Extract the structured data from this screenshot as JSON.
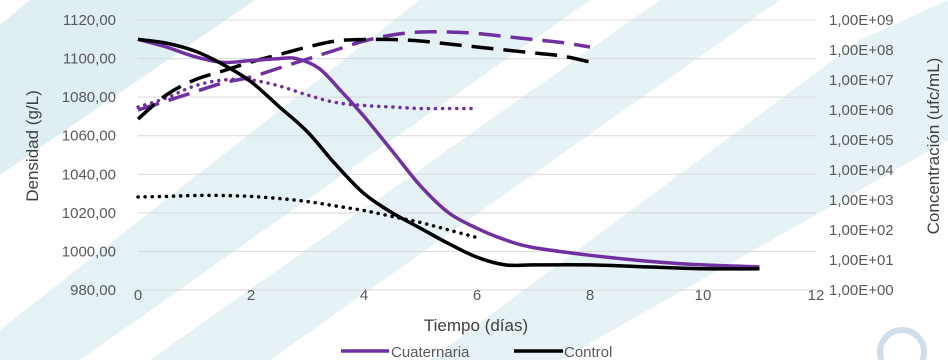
{
  "chart_data": {
    "type": "line",
    "xlabel": "Tiempo (días)",
    "ylabel": "Densidad (g/L)",
    "y2label": "Concentración (ufc/mL)",
    "xlim": [
      0,
      12
    ],
    "ylim": [
      980,
      1120
    ],
    "y2_log_range": [
      0,
      9
    ],
    "x_ticks": [
      "0",
      "2",
      "4",
      "6",
      "8",
      "10",
      "12"
    ],
    "y_ticks": [
      "980,00",
      "1000,00",
      "1020,00",
      "1040,00",
      "1060,00",
      "1080,00",
      "1100,00",
      "1120,00"
    ],
    "y2_ticks": [
      "1,00E+00",
      "1,00E+01",
      "1,00E+02",
      "1,00E+03",
      "1,00E+04",
      "1,00E+05",
      "1,00E+06",
      "1,00E+07",
      "1,00E+08",
      "1,00E+09"
    ],
    "grid": true,
    "legend_position": "bottom",
    "colors": {
      "Cuaternaria": "#7030a0",
      "Control": "#000000"
    },
    "legend": [
      {
        "name": "Cuaternaria",
        "color": "#7030a0"
      },
      {
        "name": "Control",
        "color": "#000000"
      }
    ],
    "series": [
      {
        "name": "Cuaternaria",
        "axis": "left",
        "style": "solid",
        "color": "#7030a0",
        "x": [
          0,
          0.5,
          1,
          1.5,
          2,
          2.5,
          2.8,
          3.2,
          3.6,
          4,
          4.5,
          5,
          5.5,
          6,
          6.5,
          7,
          8,
          9,
          10,
          11
        ],
        "y": [
          1110,
          1106,
          1101,
          1098,
          1099,
          1100,
          1100,
          1095,
          1083,
          1070,
          1052,
          1034,
          1020,
          1012,
          1006,
          1002,
          998,
          995,
          993,
          992
        ]
      },
      {
        "name": "Control",
        "axis": "left",
        "style": "solid",
        "color": "#000000",
        "x": [
          0,
          0.5,
          1,
          1.5,
          2,
          2.5,
          3,
          3.5,
          4,
          4.5,
          5,
          5.5,
          6,
          6.5,
          7,
          8,
          9,
          10,
          11
        ],
        "y": [
          1110,
          1108,
          1104,
          1097,
          1088,
          1075,
          1062,
          1045,
          1030,
          1020,
          1012,
          1004,
          997,
          993,
          993,
          993,
          992,
          991,
          991
        ]
      },
      {
        "name": "Cuaternaria",
        "axis": "right",
        "style": "dashed",
        "color": "#7030a0",
        "x": [
          0,
          0.5,
          1,
          1.5,
          2,
          2.5,
          3,
          3.5,
          4,
          4.5,
          5,
          5.5,
          6,
          6.5,
          7,
          7.5,
          8
        ],
        "y": [
          6.0,
          6.3,
          6.6,
          6.9,
          7.1,
          7.4,
          7.7,
          8.0,
          8.3,
          8.5,
          8.6,
          8.6,
          8.55,
          8.45,
          8.35,
          8.25,
          8.1
        ]
      },
      {
        "name": "Control",
        "axis": "right",
        "style": "dashed",
        "color": "#000000",
        "x": [
          0,
          0.5,
          1,
          1.5,
          2,
          2.5,
          3,
          3.5,
          4,
          4.5,
          5,
          5.5,
          6,
          6.5,
          7,
          7.5,
          8
        ],
        "y": [
          5.7,
          6.5,
          7.0,
          7.3,
          7.6,
          7.85,
          8.1,
          8.3,
          8.35,
          8.35,
          8.3,
          8.2,
          8.1,
          8.0,
          7.9,
          7.8,
          7.6
        ]
      },
      {
        "name": "Cuaternaria",
        "axis": "right",
        "style": "dotted",
        "color": "#7030a0",
        "x": [
          0,
          0.5,
          1,
          1.5,
          2,
          2.5,
          3,
          3.5,
          4,
          4.5,
          5,
          5.5,
          6
        ],
        "y": [
          6.1,
          6.4,
          6.8,
          7.0,
          7.0,
          6.8,
          6.5,
          6.25,
          6.15,
          6.1,
          6.05,
          6.05,
          6.05
        ]
      },
      {
        "name": "Control",
        "axis": "right",
        "style": "dotted",
        "color": "#000000",
        "x": [
          0,
          0.5,
          1,
          1.5,
          2,
          2.5,
          3,
          3.5,
          4,
          4.5,
          5,
          5.5,
          6
        ],
        "y": [
          3.1,
          3.12,
          3.15,
          3.15,
          3.12,
          3.05,
          2.95,
          2.8,
          2.65,
          2.45,
          2.25,
          2.0,
          1.75
        ]
      }
    ]
  }
}
